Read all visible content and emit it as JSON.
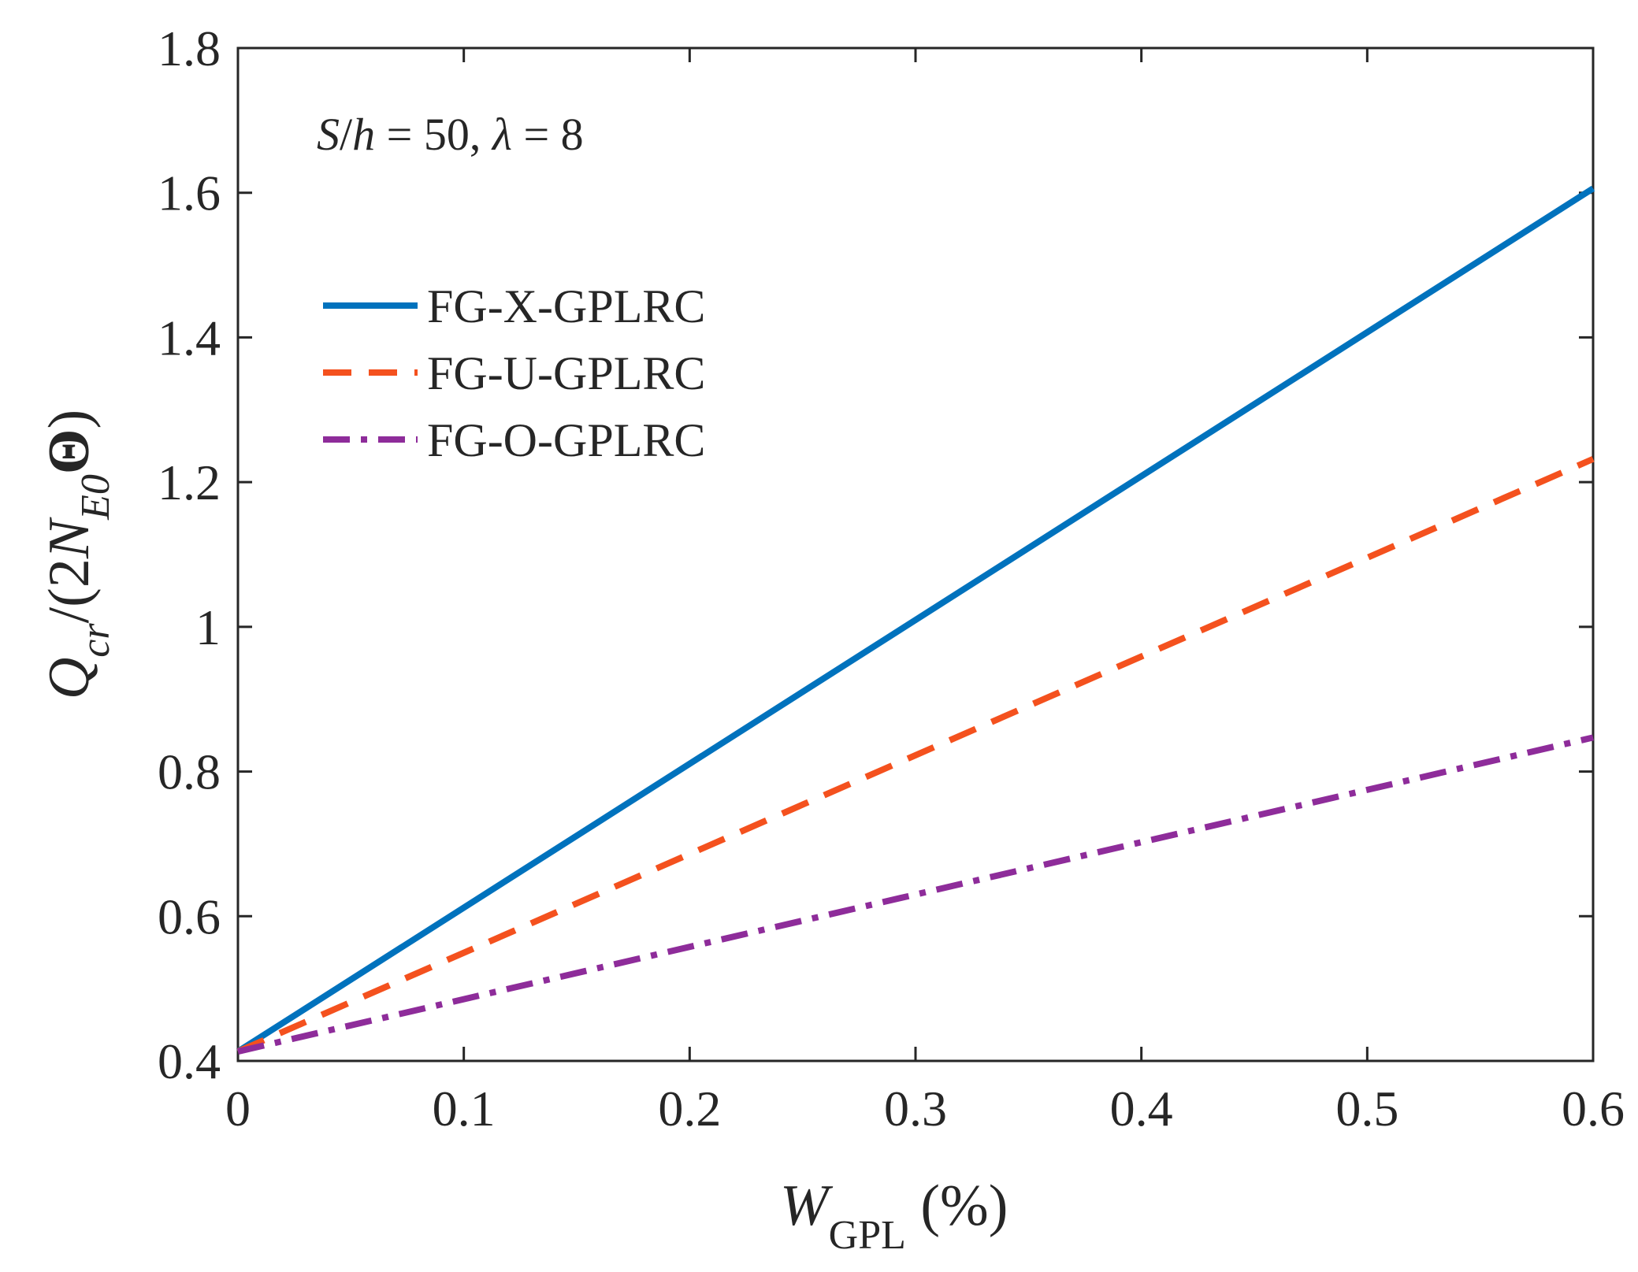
{
  "chart_data": {
    "type": "line",
    "title": "",
    "xlabel": {
      "main": "W",
      "sub": "GPL",
      "suffix": " (%)"
    },
    "ylabel": {
      "q": "Q",
      "q_sub": "cr",
      "mid": "/(2",
      "n": "N",
      "n_sub": "E0",
      "theta": "Θ",
      "end": ")"
    },
    "xlim": [
      0,
      0.6
    ],
    "ylim": [
      0.4,
      1.8
    ],
    "xticks": [
      0,
      0.1,
      0.2,
      0.3,
      0.4,
      0.5,
      0.6
    ],
    "xtick_labels": [
      "0",
      "0.1",
      "0.2",
      "0.3",
      "0.4",
      "0.5",
      "0.6"
    ],
    "yticks": [
      0.4,
      0.6,
      0.8,
      1.0,
      1.2,
      1.4,
      1.6,
      1.8
    ],
    "ytick_labels": [
      "0.4",
      "0.6",
      "0.8",
      "1",
      "1.2",
      "1.4",
      "1.6",
      "1.8"
    ],
    "grid": false,
    "legend_position": "upper-left",
    "annotation": {
      "s": "S",
      "slash": "/",
      "h": "h",
      "eq1": " = 50, ",
      "lambda": "λ",
      "eq2": " = 8"
    },
    "series": [
      {
        "name": "FG-X-GPLRC",
        "style": "solid",
        "color": "#0072BD",
        "x": [
          0,
          0.6
        ],
        "y": [
          0.413,
          1.606
        ]
      },
      {
        "name": "FG-U-GPLRC",
        "style": "dashed",
        "color": "#F4511E",
        "x": [
          0,
          0.6
        ],
        "y": [
          0.413,
          1.232
        ]
      },
      {
        "name": "FG-O-GPLRC",
        "style": "dashdot",
        "color": "#8E2C9A",
        "x": [
          0,
          0.6
        ],
        "y": [
          0.413,
          0.847
        ]
      }
    ]
  }
}
